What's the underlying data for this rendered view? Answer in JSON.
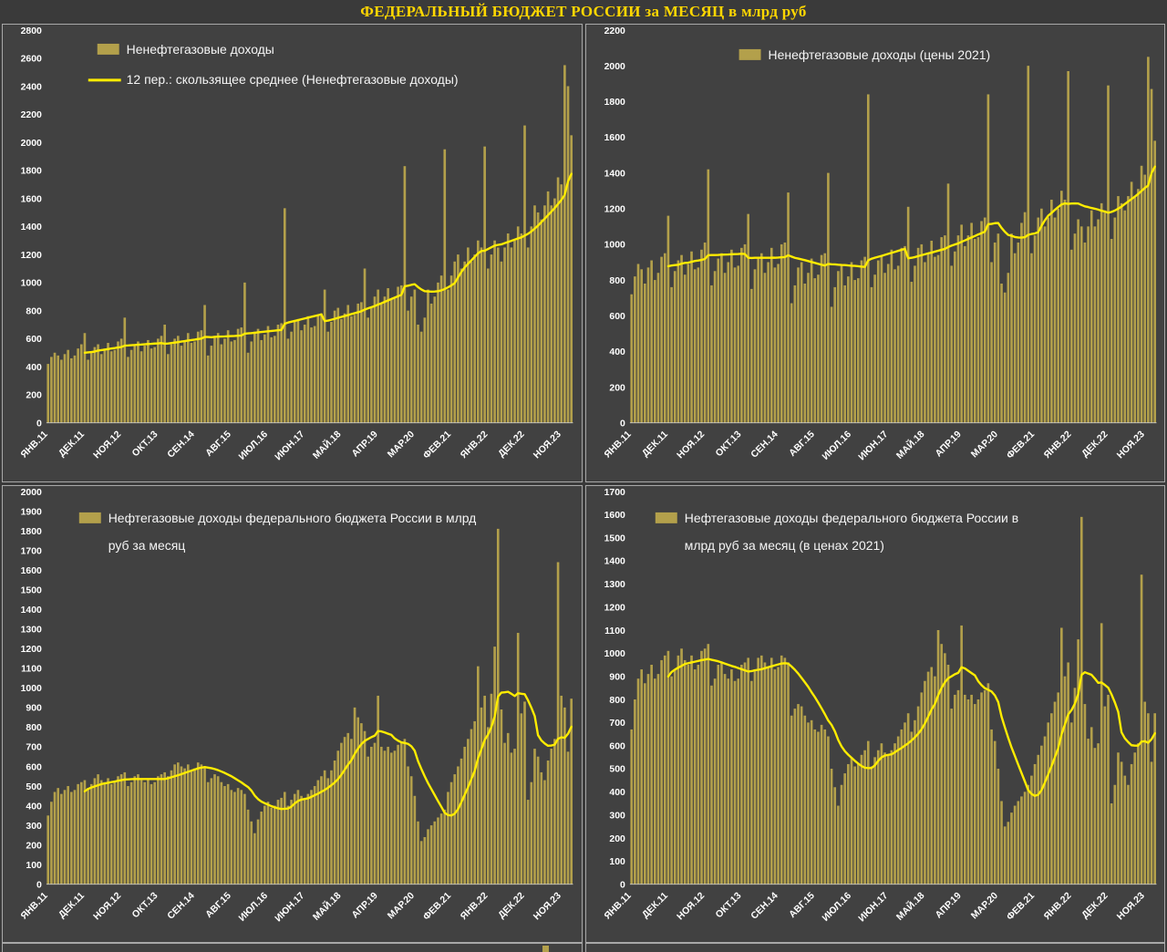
{
  "title": "ФЕДЕРАЛЬНЫЙ БЮДЖЕТ РОССИИ за МЕСЯЦ в млрд руб",
  "colors": {
    "page_bg": "#3a3a3a",
    "panel_bg": "#414141",
    "bar_fill": "#b3a04b",
    "line_color": "#ffec00",
    "axis_text": "#ffffff",
    "title_color": "#ffd700",
    "panel_border": "#a8a8a8"
  },
  "chart_data": [
    {
      "type": "bar",
      "title": "Ненефтегазовые доходы",
      "xlabel": "",
      "ylabel": "",
      "units": "млрд руб",
      "legend": [
        {
          "swatch": "bar",
          "lines": [
            "Ненефтегазовые доходы"
          ]
        },
        {
          "swatch": "line",
          "lines": [
            "12 пер.: скользящее среднее (Ненефтегазовые доходы)"
          ]
        }
      ],
      "legend_position": "top-left-inside",
      "grid": false,
      "ylim": [
        0,
        2800
      ],
      "ytick_step": 200,
      "ma_window": 12,
      "x_start_label": "ЯНВ.11",
      "x_tick_interval": 11,
      "x_tick_labels": [
        "ЯНВ.11",
        "ДЕК.11",
        "НОЯ.12",
        "ОКТ.13",
        "СЕН.14",
        "АВГ.15",
        "ИЮЛ.16",
        "ИЮН.17",
        "МАЙ.18",
        "АПР.19",
        "МАР.20",
        "ФЕВ.21",
        "ЯНВ.22",
        "ДЕК.22",
        "НОЯ.23"
      ],
      "values": [
        420,
        470,
        500,
        480,
        450,
        490,
        520,
        460,
        480,
        530,
        560,
        640,
        450,
        500,
        540,
        560,
        490,
        530,
        570,
        510,
        520,
        580,
        600,
        750,
        470,
        520,
        560,
        580,
        510,
        550,
        590,
        530,
        540,
        600,
        620,
        700,
        490,
        560,
        600,
        620,
        550,
        590,
        640,
        570,
        580,
        650,
        660,
        840,
        480,
        550,
        620,
        640,
        560,
        600,
        660,
        580,
        590,
        670,
        680,
        1000,
        500,
        580,
        650,
        670,
        590,
        630,
        690,
        610,
        620,
        700,
        710,
        1530,
        600,
        650,
        720,
        740,
        660,
        700,
        760,
        680,
        690,
        770,
        780,
        950,
        650,
        720,
        800,
        820,
        740,
        780,
        840,
        760,
        770,
        850,
        860,
        1100,
        750,
        820,
        900,
        950,
        850,
        900,
        960,
        880,
        890,
        970,
        980,
        1830,
        800,
        900,
        950,
        700,
        650,
        750,
        950,
        850,
        900,
        1000,
        1050,
        1950,
        950,
        1050,
        1150,
        1200,
        1100,
        1150,
        1250,
        1150,
        1200,
        1300,
        1250,
        1970,
        1100,
        1200,
        1300,
        1250,
        1150,
        1250,
        1350,
        1250,
        1300,
        1400,
        1350,
        2120,
        1250,
        1400,
        1550,
        1500,
        1450,
        1550,
        1650,
        1550,
        1600,
        1750,
        1700,
        2550,
        2400,
        2050
      ]
    },
    {
      "type": "bar",
      "title": "Ненефтегазовые доходы (цены 2021)",
      "xlabel": "",
      "ylabel": "",
      "units": "млрд руб (цены 2021)",
      "legend": [
        {
          "swatch": "bar",
          "lines": [
            "Ненефтегазовые доходы (цены 2021)"
          ]
        }
      ],
      "legend_position": "top-center-inside",
      "grid": false,
      "ylim": [
        0,
        2200
      ],
      "ytick_step": 200,
      "ma_window": 12,
      "x_start_label": "ЯНВ.11",
      "x_tick_interval": 11,
      "x_tick_labels": [
        "ЯНВ.11",
        "ДЕК.11",
        "НОЯ.12",
        "ОКТ.13",
        "СЕН.14",
        "АВГ.15",
        "ИЮЛ.16",
        "ИЮН.17",
        "МАЙ.18",
        "АПР.19",
        "МАР.20",
        "ФЕВ.21",
        "ЯНВ.22",
        "ДЕК.22",
        "НОЯ.23"
      ],
      "values": [
        720,
        820,
        890,
        860,
        780,
        870,
        910,
        800,
        840,
        930,
        950,
        1160,
        760,
        850,
        910,
        940,
        830,
        890,
        960,
        860,
        870,
        970,
        1010,
        1420,
        770,
        850,
        920,
        950,
        840,
        900,
        970,
        870,
        880,
        980,
        1000,
        1170,
        750,
        860,
        920,
        950,
        840,
        900,
        980,
        870,
        890,
        1000,
        1010,
        1290,
        670,
        770,
        870,
        900,
        780,
        840,
        920,
        810,
        830,
        940,
        950,
        1400,
        650,
        760,
        850,
        880,
        770,
        820,
        900,
        800,
        810,
        910,
        930,
        1840,
        760,
        830,
        910,
        940,
        840,
        890,
        970,
        860,
        880,
        980,
        990,
        1210,
        790,
        880,
        980,
        1000,
        900,
        950,
        1020,
        930,
        940,
        1040,
        1050,
        1340,
        880,
        960,
        1050,
        1110,
        990,
        1050,
        1120,
        1030,
        1040,
        1130,
        1150,
        1840,
        900,
        1010,
        1060,
        780,
        730,
        840,
        1060,
        950,
        1010,
        1120,
        1180,
        2000,
        950,
        1050,
        1150,
        1200,
        1100,
        1150,
        1250,
        1150,
        1200,
        1300,
        1250,
        1970,
        970,
        1060,
        1140,
        1100,
        1010,
        1100,
        1190,
        1100,
        1140,
        1230,
        1190,
        1890,
        1030,
        1150,
        1270,
        1230,
        1190,
        1270,
        1350,
        1270,
        1310,
        1440,
        1390,
        2050,
        1870,
        1580
      ]
    },
    {
      "type": "bar",
      "title": "Нефтегазовые доходы федерального бюджета России в млрд руб за месяц",
      "xlabel": "",
      "ylabel": "",
      "units": "млрд руб",
      "legend": [
        {
          "swatch": "bar",
          "lines": [
            "Нефтегазовые доходы федерального бюджета России в млрд",
            "руб за месяц"
          ]
        }
      ],
      "legend_position": "top-left-inside",
      "grid": false,
      "ylim": [
        0,
        2000
      ],
      "ytick_step": 100,
      "ma_window": 12,
      "x_start_label": "ЯНВ.11",
      "x_tick_interval": 11,
      "x_tick_labels": [
        "ЯНВ.11",
        "ДЕК.11",
        "НОЯ.12",
        "ОКТ.13",
        "СЕН.14",
        "АВГ.15",
        "ИЮЛ.16",
        "ИЮН.17",
        "МАЙ.18",
        "АПР.19",
        "МАР.20",
        "ФЕВ.21",
        "ЯНВ.22",
        "ДЕК.22",
        "НОЯ.23"
      ],
      "values": [
        350,
        420,
        470,
        490,
        460,
        480,
        500,
        470,
        480,
        510,
        520,
        530,
        490,
        510,
        540,
        560,
        530,
        520,
        540,
        510,
        520,
        550,
        560,
        570,
        500,
        520,
        550,
        560,
        530,
        520,
        540,
        510,
        520,
        550,
        560,
        570,
        550,
        580,
        610,
        620,
        600,
        590,
        610,
        580,
        590,
        620,
        610,
        600,
        520,
        540,
        560,
        550,
        520,
        500,
        510,
        480,
        470,
        490,
        480,
        460,
        380,
        320,
        260,
        330,
        370,
        400,
        420,
        390,
        400,
        430,
        440,
        470,
        400,
        430,
        460,
        480,
        450,
        440,
        460,
        480,
        500,
        530,
        550,
        580,
        540,
        580,
        630,
        680,
        720,
        750,
        770,
        740,
        900,
        850,
        820,
        780,
        650,
        700,
        720,
        960,
        700,
        680,
        700,
        670,
        680,
        710,
        720,
        740,
        600,
        550,
        450,
        320,
        220,
        240,
        280,
        300,
        320,
        340,
        360,
        380,
        470,
        520,
        560,
        600,
        640,
        700,
        740,
        790,
        830,
        1110,
        900,
        960,
        800,
        970,
        1210,
        1810,
        890,
        720,
        770,
        670,
        690,
        1280,
        870,
        930,
        430,
        520,
        690,
        650,
        570,
        530,
        630,
        690,
        740,
        1640,
        960,
        900,
        675,
        945
      ]
    },
    {
      "type": "bar",
      "title": "Нефтегазовые доходы федерального бюджета России в млрд руб за месяц (в ценах 2021)",
      "xlabel": "",
      "ylabel": "",
      "units": "млрд руб (цены 2021)",
      "legend": [
        {
          "swatch": "bar",
          "lines": [
            "Нефтегазовые доходы федерального бюджета России в",
            "млрд руб за месяц (в ценах 2021)"
          ]
        }
      ],
      "legend_position": "top-left-inside",
      "grid": false,
      "ylim": [
        0,
        1700
      ],
      "ytick_step": 100,
      "ma_window": 12,
      "x_start_label": "ЯНВ.11",
      "x_tick_interval": 11,
      "x_tick_labels": [
        "ЯНВ.11",
        "ДЕК.11",
        "НОЯ.12",
        "ОКТ.13",
        "СЕН.14",
        "АВГ.15",
        "ИЮЛ.16",
        "ИЮН.17",
        "МАЙ.18",
        "АПР.19",
        "МАР.20",
        "ФЕВ.21",
        "ЯНВ.22",
        "ДЕК.22",
        "НОЯ.23"
      ],
      "values": [
        670,
        800,
        890,
        930,
        870,
        910,
        950,
        890,
        910,
        970,
        990,
        1010,
        900,
        930,
        990,
        1020,
        970,
        950,
        990,
        930,
        950,
        1010,
        1020,
        1040,
        860,
        890,
        950,
        960,
        910,
        890,
        930,
        880,
        890,
        950,
        960,
        980,
        880,
        930,
        980,
        990,
        960,
        940,
        980,
        930,
        940,
        990,
        980,
        960,
        730,
        760,
        780,
        770,
        730,
        700,
        710,
        670,
        660,
        690,
        670,
        640,
        500,
        420,
        340,
        430,
        480,
        520,
        550,
        510,
        520,
        560,
        580,
        620,
        510,
        550,
        580,
        610,
        570,
        560,
        580,
        610,
        640,
        670,
        700,
        740,
        660,
        710,
        770,
        830,
        880,
        920,
        940,
        900,
        1100,
        1040,
        1000,
        950,
        760,
        820,
        840,
        1120,
        820,
        800,
        820,
        780,
        800,
        830,
        840,
        870,
        670,
        620,
        500,
        360,
        250,
        270,
        310,
        340,
        360,
        380,
        400,
        430,
        470,
        520,
        560,
        600,
        640,
        700,
        740,
        790,
        830,
        1110,
        900,
        960,
        700,
        850,
        1060,
        1590,
        780,
        630,
        680,
        590,
        610,
        1130,
        770,
        820,
        350,
        430,
        570,
        530,
        470,
        430,
        520,
        570,
        610,
        1340,
        790,
        740,
        530,
        740
      ]
    }
  ]
}
